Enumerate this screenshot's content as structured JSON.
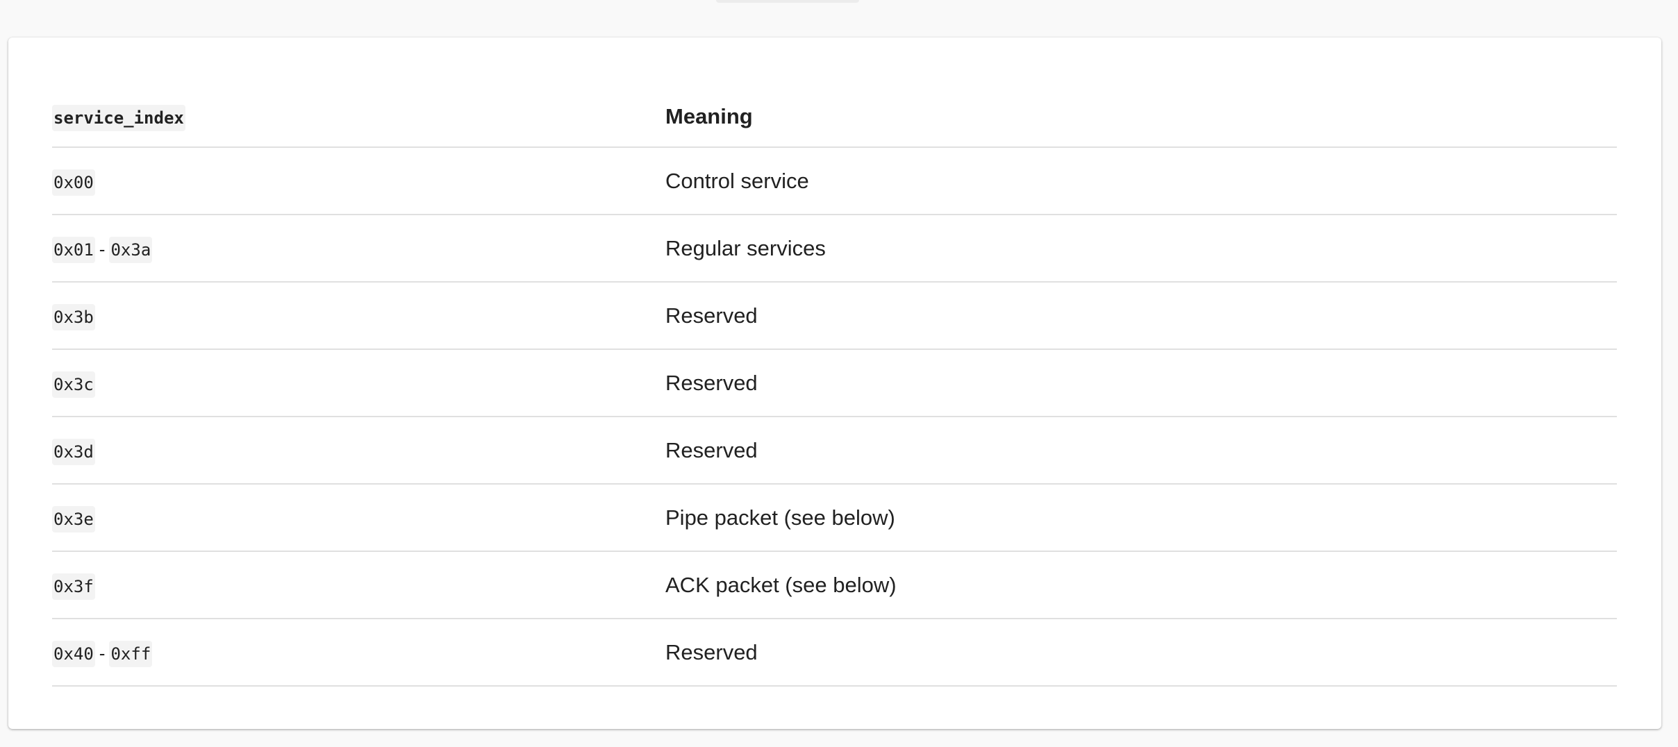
{
  "table": {
    "headers": [
      "service_index",
      "Meaning"
    ],
    "rows": [
      {
        "index": [
          "0x00"
        ],
        "meaning": "Control service"
      },
      {
        "index": [
          "0x01",
          "0x3a"
        ],
        "meaning": "Regular services"
      },
      {
        "index": [
          "0x3b"
        ],
        "meaning": "Reserved"
      },
      {
        "index": [
          "0x3c"
        ],
        "meaning": "Reserved"
      },
      {
        "index": [
          "0x3d"
        ],
        "meaning": "Reserved"
      },
      {
        "index": [
          "0x3e"
        ],
        "meaning": "Pipe packet (see below)"
      },
      {
        "index": [
          "0x3f"
        ],
        "meaning": "ACK packet (see below)"
      },
      {
        "index": [
          "0x40",
          "0xff"
        ],
        "meaning": "Reserved"
      }
    ],
    "range_separator": "-"
  }
}
